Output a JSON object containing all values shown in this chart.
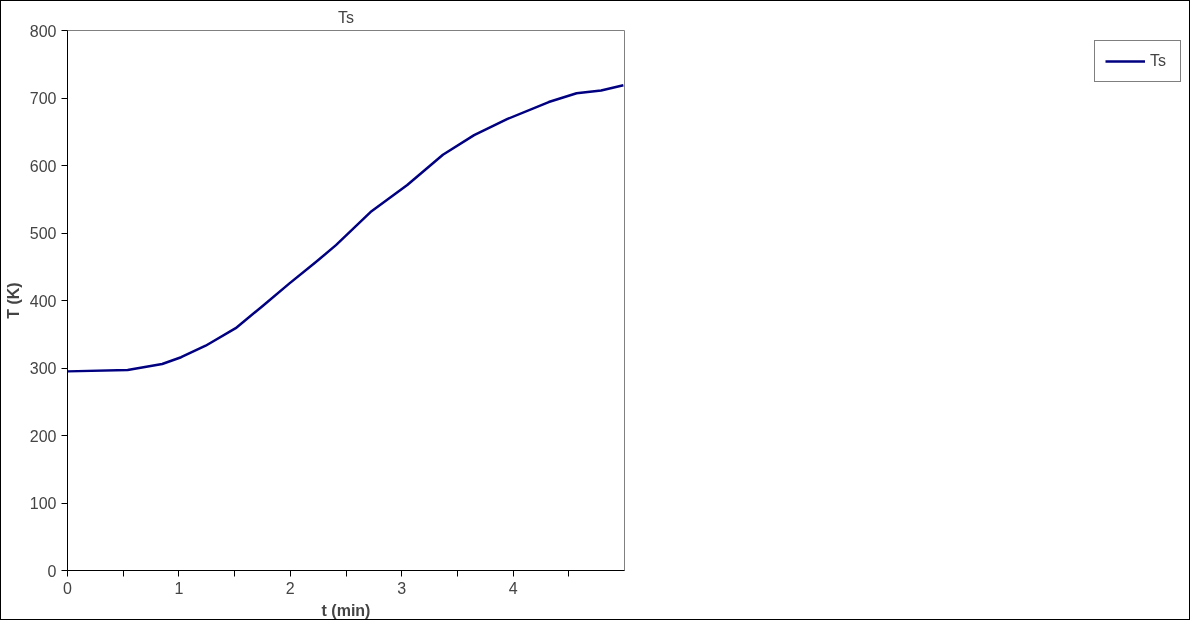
{
  "chart_data": {
    "type": "line",
    "title": "Ts",
    "xlabel": "t (min)",
    "ylabel": "T (K)",
    "xlim": [
      0,
      5
    ],
    "xticks": [
      0,
      {
        "value": 0.5,
        "label": null
      },
      1,
      {
        "value": 1.5,
        "label": null
      },
      2,
      {
        "value": 2.5,
        "label": null
      },
      3,
      {
        "value": 3.5,
        "label": null
      },
      4,
      {
        "value": 4.5,
        "label": null
      }
    ],
    "ylim": [
      0,
      800
    ],
    "yticks": [
      0,
      100,
      200,
      300,
      400,
      500,
      600,
      700,
      800
    ],
    "x": [
      0,
      0.54,
      0.85,
      1.02,
      1.24,
      1.51,
      1.76,
      1.99,
      2.23,
      2.41,
      2.72,
      3.05,
      3.37,
      3.65,
      3.95,
      4.32,
      4.57,
      4.79,
      4.99
    ],
    "series": [
      {
        "name": "Ts",
        "color": "#000080",
        "values": [
          295,
          297,
          306,
          316,
          333,
          359,
          393,
          425,
          457,
          482,
          531,
          571,
          616,
          645,
          669,
          694,
          707,
          711,
          719
        ]
      }
    ],
    "grid": false,
    "legend": "right",
    "marker": "none",
    "line_style": "solid"
  }
}
